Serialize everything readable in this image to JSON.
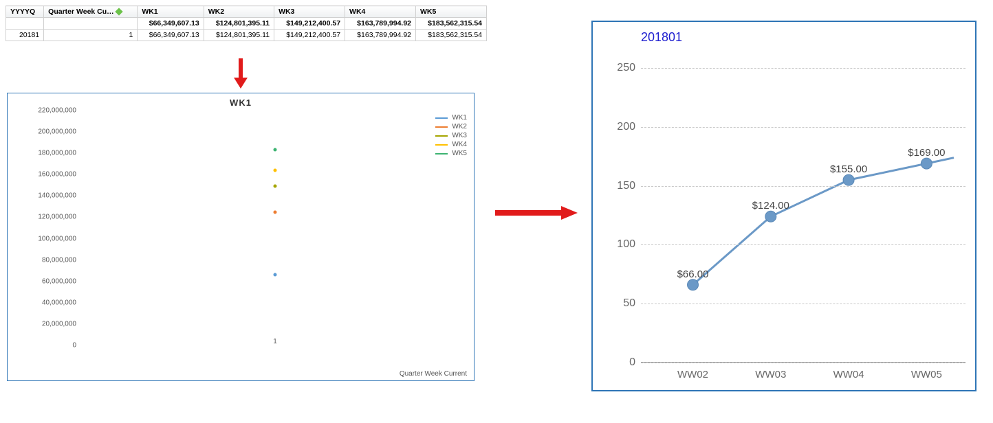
{
  "table": {
    "headers": [
      "YYYYQ",
      "Quarter Week Cu…",
      "WK1",
      "WK2",
      "WK3",
      "WK4",
      "WK5"
    ],
    "indicator_color": "#6cc24a",
    "totals_row": [
      "",
      "",
      "$66,349,607.13",
      "$124,801,395.11",
      "$149,212,400.57",
      "$163,789,994.92",
      "$183,562,315.54"
    ],
    "detail_row": [
      "20181",
      "1",
      "$66,349,607.13",
      "$124,801,395.11",
      "$149,212,400.57",
      "$163,789,994.92",
      "$183,562,315.54"
    ],
    "border_color": "#d0d0d0",
    "header_bg_from": "#fefefe",
    "header_bg_to": "#eef0f2",
    "fontsize": 10.5
  },
  "arrow_down": {
    "color": "#e11b1b"
  },
  "arrow_right": {
    "color": "#e11b1b"
  },
  "scatter_chart": {
    "type": "scatter",
    "title": "WK1",
    "title_fontsize": 13,
    "border_color": "#2e75b6",
    "x_axis_label": "Quarter Week Current",
    "x_category_label": "1",
    "ylim": [
      0,
      220000000
    ],
    "ytick_step": 20000000,
    "ytick_labels": [
      "0",
      "20,000,000",
      "40,000,000",
      "60,000,000",
      "80,000,000",
      "100,000,000",
      "120,000,000",
      "140,000,000",
      "160,000,000",
      "180,000,000",
      "200,000,000",
      "220,000,000"
    ],
    "tick_fontsize": 10,
    "tick_color": "#555555",
    "background_color": "#ffffff",
    "series": [
      {
        "name": "WK1",
        "value": 66349607.13,
        "color": "#5b9bd5"
      },
      {
        "name": "WK2",
        "value": 124801395.11,
        "color": "#ed7d31"
      },
      {
        "name": "WK3",
        "value": 149212400.57,
        "color": "#a5a500"
      },
      {
        "name": "WK4",
        "value": 163789994.92,
        "color": "#ffc000"
      },
      {
        "name": "WK5",
        "value": 183562315.54,
        "color": "#3cb371"
      }
    ],
    "marker_size": 5
  },
  "line_chart": {
    "type": "line",
    "title": "201801",
    "title_color": "#2020d0",
    "title_fontsize": 18,
    "border_color": "#2e75b6",
    "line_color": "#6b99c7",
    "marker_color": "#6b99c7",
    "line_width": 3,
    "marker_radius_px": 8,
    "grid_color": "#c9c9c9",
    "grid_style": "dashed",
    "tick_color": "#666666",
    "ytick_fontsize": 16,
    "xtick_fontsize": 15,
    "datalabel_fontsize": 15,
    "datalabel_color": "#444444",
    "ylim": [
      0,
      260
    ],
    "ytick_values": [
      0,
      50,
      100,
      150,
      200,
      250
    ],
    "categories": [
      "WW02",
      "WW03",
      "WW04",
      "WW05"
    ],
    "values": [
      66,
      124,
      155,
      169
    ],
    "data_labels": [
      "$66.00",
      "$124.00",
      "$155.00",
      "$169.00"
    ],
    "x_positions_pct": [
      16,
      40,
      64,
      88
    ],
    "extend_right": true
  }
}
